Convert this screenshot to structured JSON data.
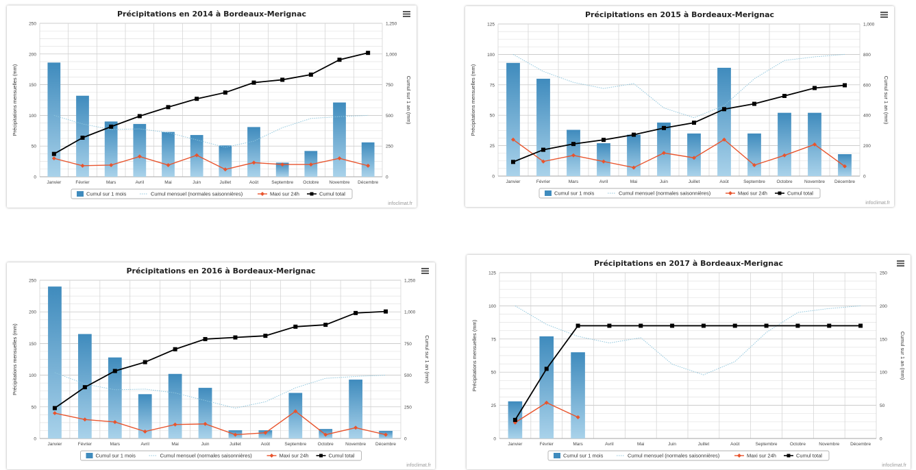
{
  "legend": {
    "cumul_1_mois": "Cumul sur 1 mois",
    "cumul_mensuel": "Cumul mensuel (normales saisonnières)",
    "maxi_24h": "Maxi sur 24h",
    "cumul_total": "Cumul total"
  },
  "credit": "infoclimat.fr",
  "colors": {
    "bar_top": "#3f8bbd",
    "bar_bottom": "#a9d2ea",
    "normals": "#8fc6dd",
    "maxi": "#e8542d",
    "total": "#000000",
    "grid": "#c8c8c8"
  },
  "chart_data": [
    {
      "type": "bar",
      "title": "Précipitations en 2014 à Bordeaux-Merignac",
      "ylabel": "Précipitations mensuelles (mm)",
      "y2label": "Cumul sur 1 an (mm)",
      "categories": [
        "Janvier",
        "Février",
        "Mars",
        "Avril",
        "Mai",
        "Juin",
        "Juillet",
        "Août",
        "Septembre",
        "Octobre",
        "Novembre",
        "Décembre"
      ],
      "ylim": [
        0,
        250
      ],
      "yticks": [
        "0",
        "50",
        "100",
        "150",
        "200",
        "250"
      ],
      "y2lim": [
        0,
        1250
      ],
      "y2ticks": [
        "0",
        "250",
        "500",
        "750",
        "1,000",
        "1,250"
      ],
      "series": [
        {
          "name": "Cumul sur 1 mois",
          "type": "bar",
          "values": [
            186,
            132,
            90,
            86,
            73,
            68,
            51,
            81,
            23,
            42,
            121,
            56
          ]
        },
        {
          "name": "Cumul mensuel (normales saisonnières)",
          "type": "line",
          "values": [
            100,
            86,
            77,
            78,
            72,
            60,
            48,
            58,
            80,
            95,
            98,
            100
          ]
        },
        {
          "name": "Maxi sur 24h",
          "type": "line",
          "values": [
            30,
            18,
            19,
            33,
            19,
            35,
            12,
            23,
            20,
            20,
            30,
            18
          ]
        },
        {
          "name": "Cumul total",
          "type": "line",
          "axis": "y2",
          "values": [
            186,
            318,
            408,
            494,
            567,
            635,
            686,
            767,
            790,
            832,
            953,
            1009
          ]
        }
      ]
    },
    {
      "type": "bar",
      "title": "Précipitations en 2015 à Bordeaux-Merignac",
      "ylabel": "Précipitations mensuelles (mm)",
      "y2label": "Cumul sur 1 an (mm)",
      "categories": [
        "Janvier",
        "Février",
        "Mars",
        "Avril",
        "Mai",
        "Juin",
        "Juillet",
        "Août",
        "Septembre",
        "Octobre",
        "Novembre",
        "Décembre"
      ],
      "ylim": [
        0,
        125
      ],
      "yticks": [
        "0",
        "25",
        "50",
        "75",
        "100",
        "125"
      ],
      "y2lim": [
        0,
        1000
      ],
      "y2ticks": [
        "0",
        "200",
        "400",
        "600",
        "800",
        "1,000"
      ],
      "series": [
        {
          "name": "Cumul sur 1 mois",
          "type": "bar",
          "values": [
            93,
            80,
            38,
            27,
            34,
            44,
            35,
            89,
            35,
            52,
            52,
            18
          ]
        },
        {
          "name": "Cumul mensuel (normales saisonnières)",
          "type": "line",
          "values": [
            100,
            86,
            77,
            72,
            76,
            56,
            48,
            58,
            80,
            95,
            98,
            100
          ]
        },
        {
          "name": "Maxi sur 24h",
          "type": "line",
          "values": [
            30,
            12,
            17,
            12,
            7,
            19,
            15,
            30,
            9,
            17,
            26,
            8
          ]
        },
        {
          "name": "Cumul total",
          "type": "line",
          "axis": "y2",
          "values": [
            93,
            173,
            211,
            238,
            272,
            316,
            351,
            440,
            475,
            527,
            579,
            597
          ]
        }
      ]
    },
    {
      "type": "bar",
      "title": "Précipitations en 2016 à Bordeaux-Merignac",
      "ylabel": "Précipitations mensuelles (mm)",
      "y2label": "Cumul sur 1 an (mm)",
      "categories": [
        "Janvier",
        "Février",
        "Mars",
        "Avril",
        "Mai",
        "Juin",
        "Juillet",
        "Août",
        "Septembre",
        "Octobre",
        "Novembre",
        "Décembre"
      ],
      "ylim": [
        0,
        250
      ],
      "yticks": [
        "0",
        "50",
        "100",
        "150",
        "200",
        "250"
      ],
      "y2lim": [
        0,
        1250
      ],
      "y2ticks": [
        "0",
        "250",
        "500",
        "750",
        "1,000",
        "1,250"
      ],
      "series": [
        {
          "name": "Cumul sur 1 mois",
          "type": "bar",
          "values": [
            240,
            165,
            128,
            70,
            102,
            80,
            13,
            13,
            72,
            15,
            93,
            12
          ]
        },
        {
          "name": "Cumul mensuel (normales saisonnières)",
          "type": "line",
          "values": [
            104,
            86,
            77,
            78,
            72,
            60,
            48,
            58,
            80,
            95,
            98,
            100
          ]
        },
        {
          "name": "Maxi sur 24h",
          "type": "line",
          "values": [
            40,
            30,
            26,
            11,
            22,
            23,
            6,
            9,
            43,
            6,
            17,
            6
          ]
        },
        {
          "name": "Cumul total",
          "type": "line",
          "axis": "y2",
          "values": [
            240,
            405,
            533,
            603,
            705,
            785,
            798,
            811,
            883,
            898,
            991,
            1003
          ]
        }
      ]
    },
    {
      "type": "bar",
      "title": "Précipitations en 2017 à Bordeaux-Merignac",
      "ylabel": "Précipitations mensuelles (mm)",
      "y2label": "Cumul sur 1 an (mm)",
      "categories": [
        "Janvier",
        "Février",
        "Mars",
        "Avril",
        "Mai",
        "Juin",
        "Juillet",
        "Août",
        "Septembre",
        "Octobre",
        "Novembre",
        "Décembre"
      ],
      "ylim": [
        0,
        125
      ],
      "yticks": [
        "0",
        "25",
        "50",
        "75",
        "100",
        "125"
      ],
      "y2lim": [
        0,
        250
      ],
      "y2ticks": [
        "0",
        "50",
        "100",
        "150",
        "200",
        "250"
      ],
      "series": [
        {
          "name": "Cumul sur 1 mois",
          "type": "bar",
          "values": [
            28,
            77,
            65,
            null,
            null,
            null,
            null,
            null,
            null,
            null,
            null,
            null
          ]
        },
        {
          "name": "Cumul mensuel (normales saisonnières)",
          "type": "line",
          "values": [
            100,
            86,
            77,
            72,
            76,
            56,
            48,
            58,
            80,
            95,
            98,
            100
          ]
        },
        {
          "name": "Maxi sur 24h",
          "type": "line",
          "values": [
            12,
            27,
            16,
            null,
            null,
            null,
            null,
            null,
            null,
            null,
            null,
            null
          ]
        },
        {
          "name": "Cumul total",
          "type": "line",
          "axis": "y2",
          "values": [
            28,
            105,
            170,
            170,
            170,
            170,
            170,
            170,
            170,
            170,
            170,
            170
          ]
        }
      ]
    }
  ]
}
